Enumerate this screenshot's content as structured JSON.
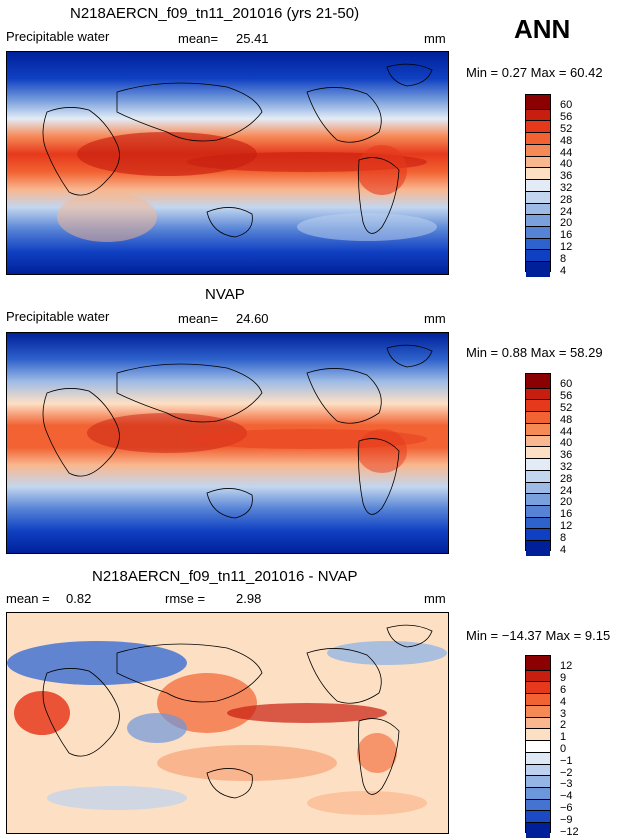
{
  "season": "ANN",
  "panels": [
    {
      "title": "N218AERCN_f09_tn11_201016 (yrs 21-50)",
      "variable": "Precipitable water",
      "stat1_label": "mean=",
      "stat1_value": "25.41",
      "units": "mm",
      "min_text": "Min =    0.27 Max =   60.42"
    },
    {
      "title": "NVAP",
      "variable": "Precipitable water",
      "stat1_label": "mean=",
      "stat1_value": "24.60",
      "units": "mm",
      "min_text": "Min =    0.88 Max =   58.29"
    },
    {
      "title": "N218AERCN_f09_tn11_201016 - NVAP",
      "variable": "",
      "stat1_label": "mean =",
      "stat1_value": "0.82",
      "stat2_label": "rmse =",
      "stat2_value": "2.98",
      "units": "mm",
      "min_text": "Min = −14.37 Max =    9.15"
    }
  ],
  "chart_data": [
    {
      "type": "heatmap",
      "title": "N218AERCN_f09_tn11_201016 (yrs 21-50)",
      "colorbar_levels": [
        "60",
        "56",
        "52",
        "48",
        "44",
        "40",
        "36",
        "32",
        "28",
        "24",
        "20",
        "16",
        "12",
        "8",
        "4"
      ],
      "colorbar_colors": [
        "#8b0000",
        "#c81e10",
        "#e6391c",
        "#f26232",
        "#f68a57",
        "#f9b78f",
        "#fde0c4",
        "#e3ecf6",
        "#c2d6ef",
        "#9ebbe6",
        "#7aa0dd",
        "#5683d6",
        "#2e62cc",
        "#1040c2",
        "#00209a"
      ],
      "mean": 25.41,
      "min": 0.27,
      "max": 60.42
    },
    {
      "type": "heatmap",
      "title": "NVAP",
      "colorbar_levels": [
        "60",
        "56",
        "52",
        "48",
        "44",
        "40",
        "36",
        "32",
        "28",
        "24",
        "20",
        "16",
        "12",
        "8",
        "4"
      ],
      "colorbar_colors": [
        "#8b0000",
        "#c81e10",
        "#e6391c",
        "#f26232",
        "#f68a57",
        "#f9b78f",
        "#fde0c4",
        "#e3ecf6",
        "#c2d6ef",
        "#9ebbe6",
        "#7aa0dd",
        "#5683d6",
        "#2e62cc",
        "#1040c2",
        "#00209a"
      ],
      "mean": 24.6,
      "min": 0.88,
      "max": 58.29
    },
    {
      "type": "heatmap",
      "title": "N218AERCN_f09_tn11_201016 - NVAP",
      "colorbar_levels": [
        "12",
        "9",
        "6",
        "4",
        "3",
        "2",
        "1",
        "0",
        "−1",
        "−2",
        "−3",
        "−4",
        "−6",
        "−9",
        "−12"
      ],
      "colorbar_colors": [
        "#8b0000",
        "#c81e10",
        "#e6391c",
        "#f26232",
        "#f68a57",
        "#f9b78f",
        "#fde0c4",
        "#ffffff",
        "#dfe9f6",
        "#bcd2ef",
        "#95b5e5",
        "#6d97dc",
        "#4473d2",
        "#1b4bc4",
        "#00209a"
      ],
      "mean": 0.82,
      "rmse": 2.98,
      "min": -14.37,
      "max": 9.15
    }
  ]
}
